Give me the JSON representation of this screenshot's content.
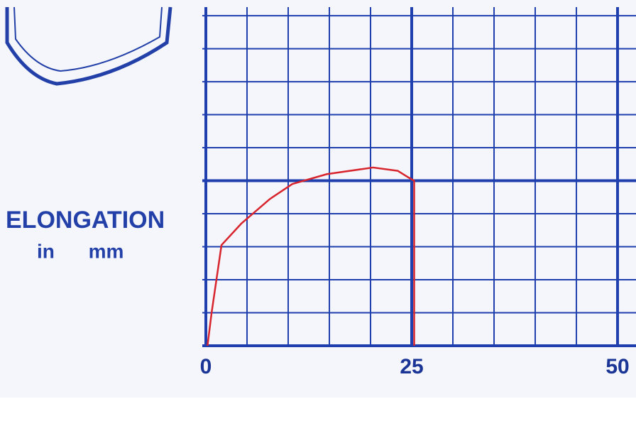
{
  "chart_data": {
    "type": "line",
    "xlabel": [
      "ELONGATION",
      "in mm"
    ],
    "xlim": [
      0,
      52.24
    ],
    "xticks": [
      0,
      25,
      50
    ],
    "xgrid": [
      0,
      5,
      10,
      15,
      20,
      25,
      30,
      35,
      40,
      45,
      50
    ],
    "ylim": [
      0,
      10.26
    ],
    "ygrid": [
      0,
      1,
      2,
      3,
      4,
      5,
      6,
      7,
      8,
      9,
      10
    ],
    "major_grid": [
      0,
      25,
      50
    ],
    "grid_color": "#1f3fae",
    "series": [
      {
        "color": "#d8242c",
        "x": [
          0.2,
          0.7,
          1.9,
          4.3,
          7.8,
          10.5,
          14.7,
          20.3,
          23.3,
          24.6,
          25.3,
          25.3
        ],
        "values": [
          0,
          1.0,
          3.05,
          3.7,
          4.45,
          4.9,
          5.2,
          5.4,
          5.3,
          5.1,
          5.0,
          0
        ]
      }
    ]
  }
}
